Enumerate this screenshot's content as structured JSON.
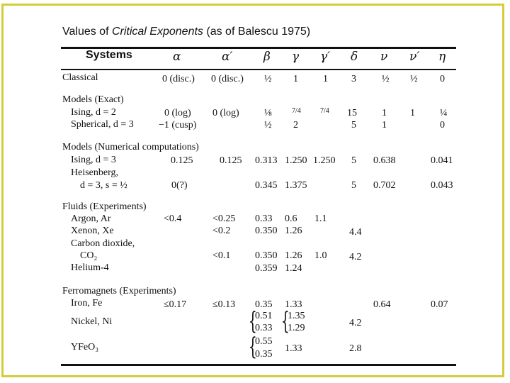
{
  "title": {
    "prefix": "Values of ",
    "italic": "Critical Exponents",
    "suffix": " (as of Balescu 1975)"
  },
  "header": {
    "systems": "Systems",
    "cols": [
      "α",
      "α′",
      "β",
      "γ",
      "γ′",
      "δ",
      "ν",
      "ν′",
      "η"
    ]
  },
  "rows": {
    "classical": {
      "label": "Classical",
      "alpha": "0 (disc.)",
      "alphap": "0 (disc.)",
      "beta": "½",
      "gamma": "1",
      "gammap": "1",
      "delta": "3",
      "nu": "½",
      "nup": "½",
      "eta": "0"
    },
    "models_exact": {
      "label": "Models (Exact)"
    },
    "ising2": {
      "label": "Ising, d = 2",
      "alpha": "0 (log)",
      "alphap": "0 (log)",
      "beta": "⅛",
      "gamma": "7/4",
      "gammap": "7/4",
      "delta": "15",
      "nu": "1",
      "nup": "1",
      "eta": "¼"
    },
    "spherical": {
      "label": "Spherical, d = 3",
      "alpha": "−1 (cusp)",
      "beta": "½",
      "gamma": "2",
      "delta": "5",
      "nu": "1",
      "eta": "0"
    },
    "models_num": {
      "label": "Models (Numerical computations)"
    },
    "ising3": {
      "label": "Ising, d = 3",
      "alpha": "0.125",
      "alphap": "0.125",
      "beta": "0.313",
      "gamma": "1.250",
      "gammap": "1.250",
      "delta": "5",
      "nu": "0.638",
      "eta": "0.041"
    },
    "heis_a": {
      "label": "Heisenberg,"
    },
    "heis_b": {
      "label": "d = 3, s = ½",
      "alpha": "0(?)",
      "beta": "0.345",
      "gamma": "1.375",
      "delta": "5",
      "nu": "0.702",
      "eta": "0.043"
    },
    "fluids": {
      "label": "Fluids (Experiments)"
    },
    "argon": {
      "label": "Argon, Ar",
      "alpha": "<0.4",
      "alphap": "<0.25",
      "beta": "0.33",
      "gamma": "0.6",
      "gammap": "1.1"
    },
    "xenon": {
      "label": "Xenon, Xe",
      "alphap": "<0.2",
      "beta": "0.350",
      "gamma": "1.26",
      "delta": "4.4"
    },
    "co2_a": {
      "label": "Carbon dioxide,"
    },
    "co2_b": {
      "label": "CO₂",
      "alphap": "<0.1",
      "beta": "0.350",
      "gamma": "1.26",
      "gammap": "1.0",
      "delta": "4.2"
    },
    "helium": {
      "label": "Helium-4",
      "beta": "0.359",
      "gamma": "1.24"
    },
    "ferro": {
      "label": "Ferromagnets (Experiments)"
    },
    "iron": {
      "label": "Iron, Fe",
      "alpha": "≤0.17",
      "alphap": "≤0.13",
      "beta": "0.35",
      "gamma": "1.33",
      "nu": "0.64",
      "eta": "0.07"
    },
    "nickel": {
      "label": "Nickel, Ni",
      "beta1": "0.51",
      "beta2": "0.33",
      "gamma1": "1.35",
      "gamma2": "1.29",
      "delta": "4.2"
    },
    "yfeo": {
      "label": "YFeO₃",
      "beta1": "0.55",
      "beta2": "0.35",
      "gamma": "1.33",
      "delta": "2.8"
    }
  }
}
